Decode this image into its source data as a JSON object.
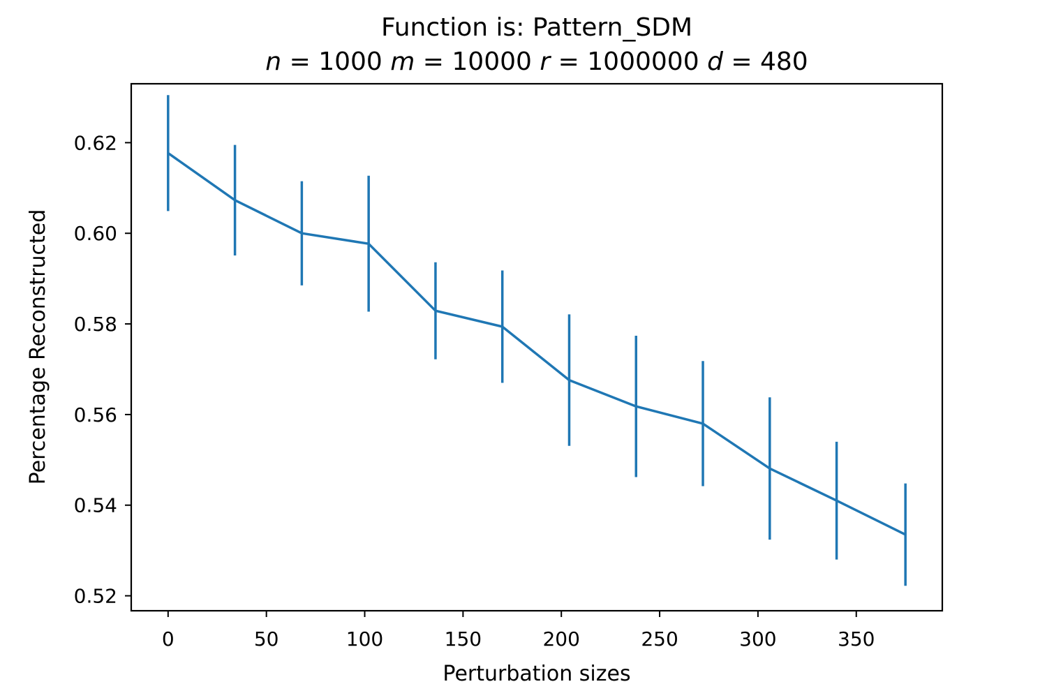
{
  "chart_data": {
    "type": "line",
    "title": "Function is: Pattern_SDM",
    "subtitle": {
      "parts": [
        {
          "var": "n",
          "value": "1000"
        },
        {
          "var": "m",
          "value": "10000"
        },
        {
          "var": "r",
          "value": "1000000"
        },
        {
          "var": "d",
          "value": "480"
        }
      ]
    },
    "xlabel": "Perturbation sizes",
    "ylabel": "Percentage Reconstructed",
    "xlim": [
      -18.75,
      393.75
    ],
    "ylim": [
      0.5167,
      0.633
    ],
    "xticks": [
      0,
      50,
      100,
      150,
      200,
      250,
      300,
      350
    ],
    "xtick_labels": [
      "0",
      "50",
      "100",
      "150",
      "200",
      "250",
      "300",
      "350"
    ],
    "yticks": [
      0.52,
      0.54,
      0.56,
      0.58,
      0.6,
      0.62
    ],
    "ytick_labels": [
      "0.52",
      "0.54",
      "0.56",
      "0.58",
      "0.60",
      "0.62"
    ],
    "grid": false,
    "legend": "none",
    "color": "#1f77b4",
    "series": [
      {
        "x": [
          0,
          34,
          68,
          102,
          136,
          170,
          204,
          238,
          272,
          306,
          340,
          375
        ],
        "y": [
          0.6177,
          0.6073,
          0.6,
          0.5977,
          0.5829,
          0.5794,
          0.5676,
          0.5618,
          0.558,
          0.5481,
          0.541,
          0.5335
        ],
        "yerr": [
          0.0128,
          0.0122,
          0.0115,
          0.015,
          0.0107,
          0.0124,
          0.0145,
          0.0156,
          0.0138,
          0.0157,
          0.013,
          0.0113
        ]
      }
    ]
  }
}
